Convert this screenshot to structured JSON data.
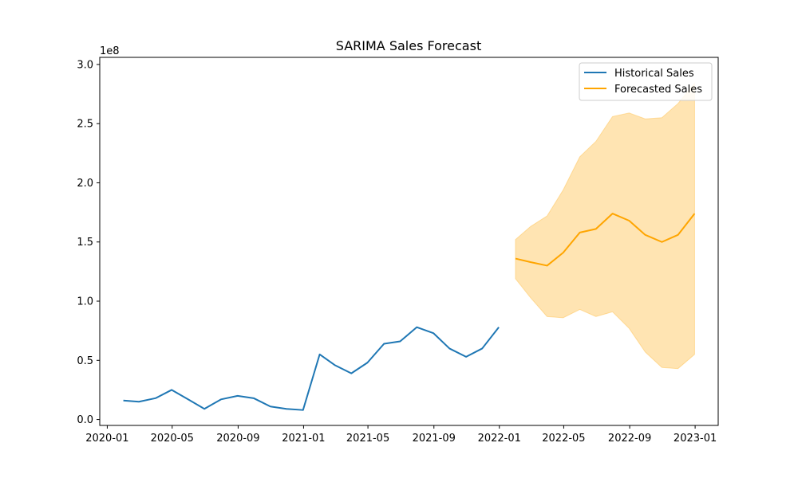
{
  "chart_data": {
    "type": "line",
    "title": "SARIMA Sales Forecast",
    "xlabel": "",
    "ylabel": "",
    "y_scale_label": "1e8",
    "y_scale": 100000000,
    "ylim": [
      -0.05,
      3.06
    ],
    "xlim": [
      "2019-12-18",
      "2023-02-13"
    ],
    "y_ticks": [
      0.0,
      0.5,
      1.0,
      1.5,
      2.0,
      2.5,
      3.0
    ],
    "y_tick_labels": [
      "0.0",
      "0.5",
      "1.0",
      "1.5",
      "2.0",
      "2.5",
      "3.0"
    ],
    "x_ticks": [
      "2020-01-01",
      "2020-05-01",
      "2020-09-01",
      "2021-01-01",
      "2021-05-01",
      "2021-09-01",
      "2022-01-01",
      "2022-05-01",
      "2022-09-01",
      "2023-01-01"
    ],
    "x_tick_labels": [
      "2020-01",
      "2020-05",
      "2020-09",
      "2021-01",
      "2021-05",
      "2021-09",
      "2022-01",
      "2022-05",
      "2022-09",
      "2023-01"
    ],
    "grid": false,
    "legend_position": "top-right",
    "series": [
      {
        "name": "Historical Sales",
        "color": "#1f77b4",
        "x": [
          "2020-01-31",
          "2020-02-29",
          "2020-03-31",
          "2020-04-30",
          "2020-05-31",
          "2020-06-30",
          "2020-07-31",
          "2020-08-31",
          "2020-09-30",
          "2020-10-31",
          "2020-11-30",
          "2020-12-31",
          "2021-01-31",
          "2021-02-28",
          "2021-03-31",
          "2021-04-30",
          "2021-05-31",
          "2021-06-30",
          "2021-07-31",
          "2021-08-31",
          "2021-09-30",
          "2021-10-31",
          "2021-11-30",
          "2021-12-31"
        ],
        "values": [
          0.16,
          0.15,
          0.18,
          0.25,
          0.17,
          0.09,
          0.17,
          0.2,
          0.18,
          0.11,
          0.09,
          0.08,
          0.55,
          0.46,
          0.39,
          0.48,
          0.64,
          0.66,
          0.78,
          0.73,
          0.6,
          0.53,
          0.6,
          0.78
        ]
      },
      {
        "name": "Forecasted Sales",
        "color": "#ffa500",
        "x": [
          "2022-01-31",
          "2022-02-28",
          "2022-03-31",
          "2022-04-30",
          "2022-05-31",
          "2022-06-30",
          "2022-07-31",
          "2022-08-31",
          "2022-09-30",
          "2022-10-31",
          "2022-11-30",
          "2022-12-31"
        ],
        "values": [
          1.36,
          1.33,
          1.3,
          1.41,
          1.58,
          1.61,
          1.74,
          1.68,
          1.56,
          1.5,
          1.56,
          1.74
        ]
      }
    ],
    "confidence_band": {
      "color": "#ffa500",
      "opacity": 0.3,
      "x": [
        "2022-01-31",
        "2022-02-28",
        "2022-03-31",
        "2022-04-30",
        "2022-05-31",
        "2022-06-30",
        "2022-07-31",
        "2022-08-31",
        "2022-09-30",
        "2022-10-31",
        "2022-11-30",
        "2022-12-31"
      ],
      "lower": [
        1.19,
        1.03,
        0.87,
        0.86,
        0.93,
        0.87,
        0.91,
        0.77,
        0.57,
        0.44,
        0.43,
        0.55
      ],
      "upper": [
        1.52,
        1.63,
        1.72,
        1.94,
        2.22,
        2.35,
        2.56,
        2.59,
        2.54,
        2.55,
        2.67,
        2.84
      ]
    }
  }
}
